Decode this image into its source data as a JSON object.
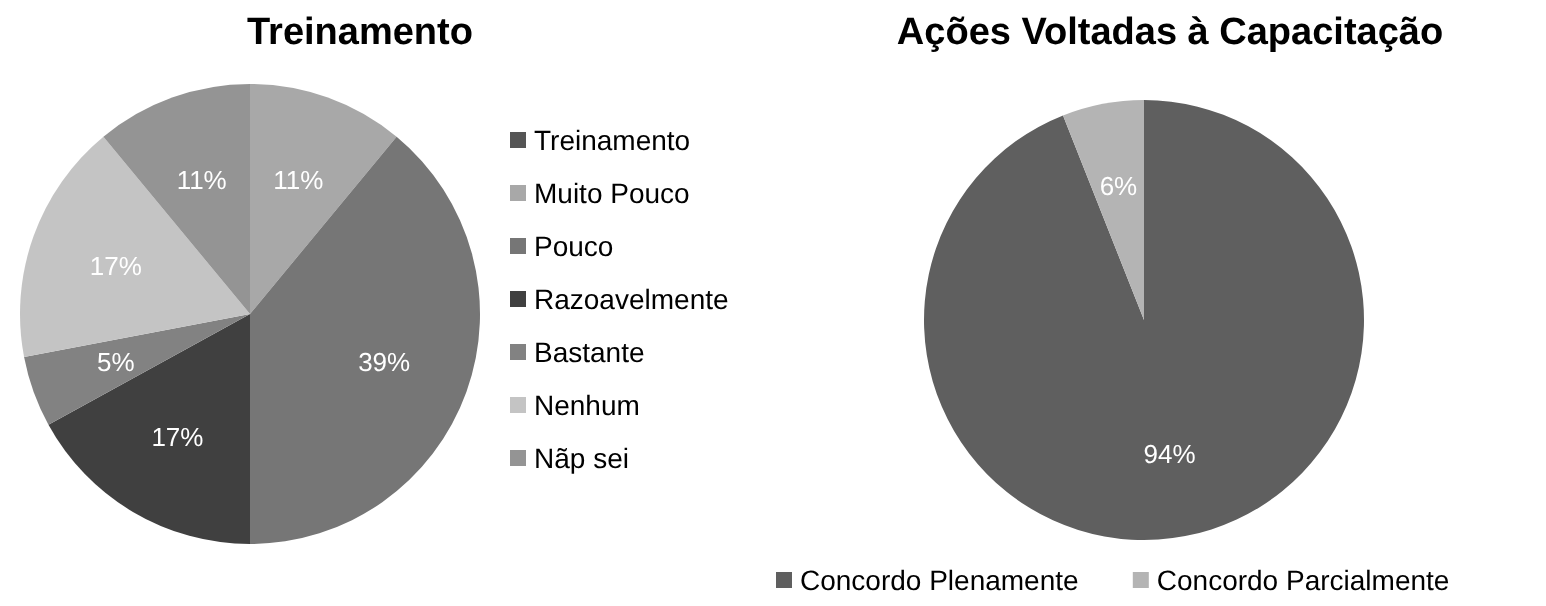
{
  "chart_data": [
    {
      "type": "pie",
      "title": "Treinamento",
      "categories": [
        "Treinamento",
        "Muito Pouco",
        "Pouco",
        "Razoavelmente",
        "Bastante",
        "Nenhum",
        "Nãp sei"
      ],
      "values": [
        0,
        11,
        39,
        17,
        5,
        17,
        11
      ],
      "value_labels": [
        null,
        "11%",
        "39%",
        "17%",
        "5%",
        "17%",
        "11%"
      ],
      "colors": [
        "#555555",
        "#a8a8a8",
        "#767676",
        "#404040",
        "#828282",
        "#c4c4c4",
        "#949494"
      ],
      "legend": "right"
    },
    {
      "type": "pie",
      "title": "Ações Voltadas à Capacitação",
      "categories": [
        "Concordo Plenamente",
        "Concordo Parcialmente"
      ],
      "values": [
        94,
        6
      ],
      "value_labels": [
        "94%",
        "6%"
      ],
      "colors": [
        "#5f5f5f",
        "#b4b4b4"
      ],
      "legend": "bottom"
    }
  ]
}
